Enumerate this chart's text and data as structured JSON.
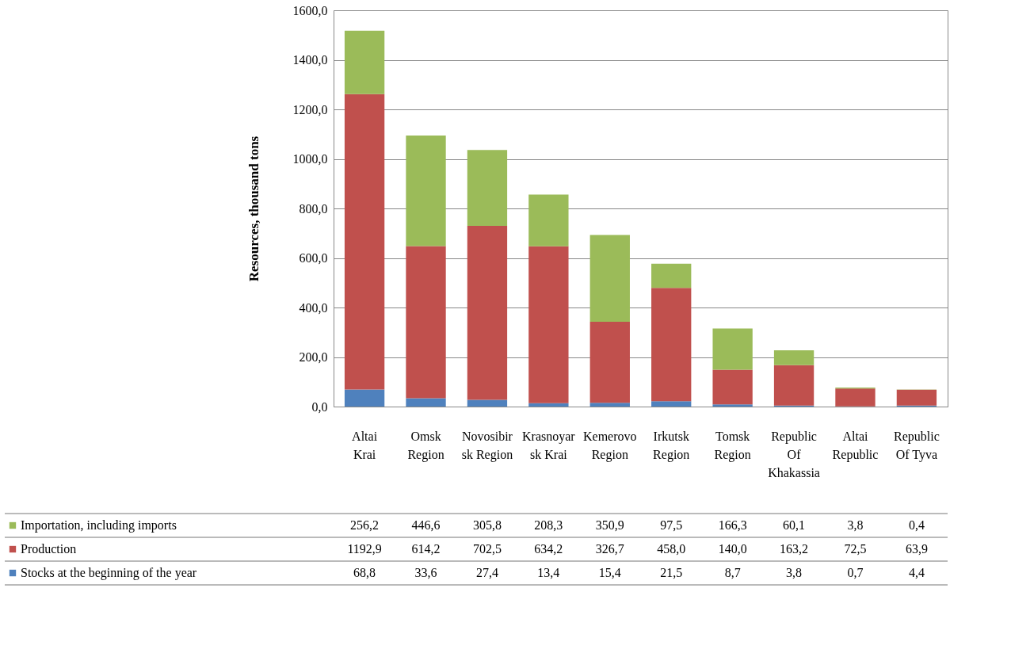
{
  "chart_data": {
    "type": "bar",
    "stacked": true,
    "ylabel": "Resources, thousand tons",
    "categories": [
      "Altai Krai",
      "Omsk Region",
      "Novosibirsk Region",
      "Krasnoyarsk Krai",
      "Kemerovo Region",
      "Irkutsk Region",
      "Tomsk Region",
      "Republic Of Khakassia",
      "Altai Republic",
      "Republic Of Tyva"
    ],
    "series": [
      {
        "name": "Stocks at the beginning of the year",
        "color": "#4f81bd",
        "values": [
          68.8,
          33.6,
          27.4,
          13.4,
          15.4,
          21.5,
          8.7,
          3.8,
          0.7,
          4.4
        ],
        "value_labels": [
          "68,8",
          "33,6",
          "27,4",
          "13,4",
          "15,4",
          "21,5",
          "8,7",
          "3,8",
          "0,7",
          "4,4"
        ]
      },
      {
        "name": "Production",
        "color": "#c0504d",
        "values": [
          1192.9,
          614.2,
          702.5,
          634.2,
          326.7,
          458.0,
          140.0,
          163.2,
          72.5,
          63.9
        ],
        "value_labels": [
          "1192,9",
          "614,2",
          "702,5",
          "634,2",
          "326,7",
          "458,0",
          "140,0",
          "163,2",
          "72,5",
          "63,9"
        ]
      },
      {
        "name": "Importation, including imports",
        "color": "#9bbb59",
        "values": [
          256.2,
          446.6,
          305.8,
          208.3,
          350.9,
          97.5,
          166.3,
          60.1,
          3.8,
          0.4
        ],
        "value_labels": [
          "256,2",
          "446,6",
          "305,8",
          "208,3",
          "350,9",
          "97,5",
          "166,3",
          "60,1",
          "3,8",
          "0,4"
        ]
      }
    ],
    "ylim": [
      0,
      1600
    ],
    "yticks": [
      {
        "value": 0,
        "label": "0,0"
      },
      {
        "value": 200,
        "label": "200,0"
      },
      {
        "value": 400,
        "label": "400,0"
      },
      {
        "value": 600,
        "label": "600,0"
      },
      {
        "value": 800,
        "label": "800,0"
      },
      {
        "value": 1000,
        "label": "1000,0"
      },
      {
        "value": 1200,
        "label": "1200,0"
      },
      {
        "value": 1400,
        "label": "1400,0"
      },
      {
        "value": 1600,
        "label": "1600,0"
      }
    ],
    "grid": "y",
    "legend": "bottom"
  }
}
